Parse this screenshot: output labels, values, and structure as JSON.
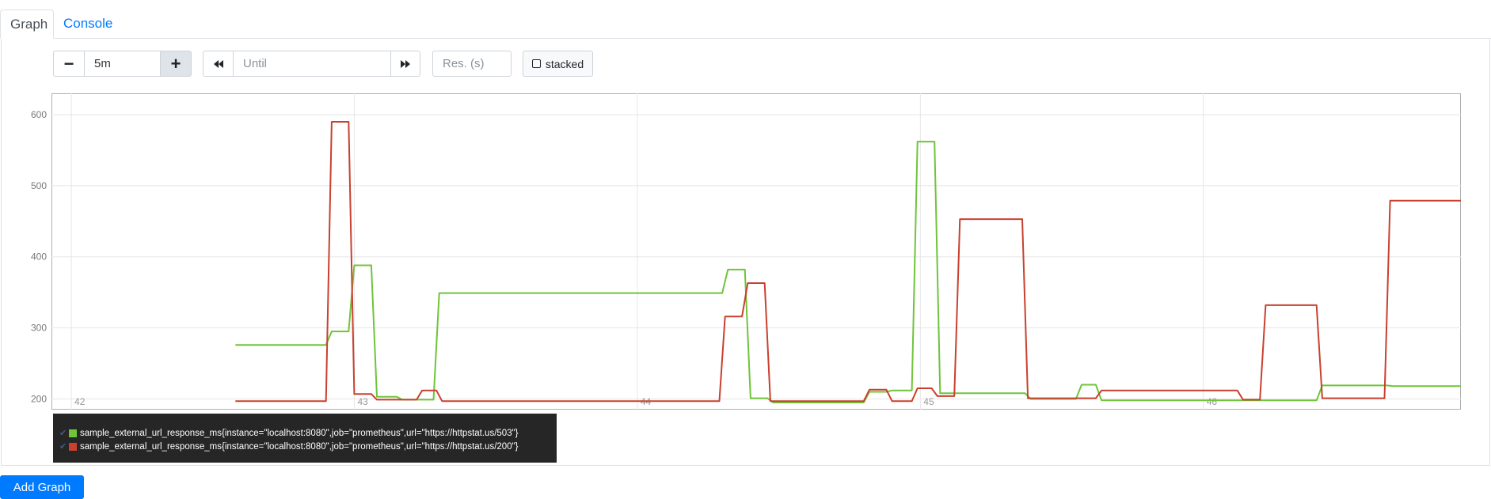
{
  "tabs": {
    "graph": "Graph",
    "console": "Console"
  },
  "controls": {
    "range_minus": "−",
    "range_value": "5m",
    "range_plus": "+",
    "until_placeholder": "Until",
    "resolution_placeholder": "Res. (s)",
    "stacked_label": "stacked",
    "back_icon": "rewind-icon",
    "forward_icon": "fast-forward-icon"
  },
  "add_graph_label": "Add Graph",
  "colors": {
    "series_503": "#6fc43a",
    "series_200": "#c9402e"
  },
  "chart_data": {
    "type": "line",
    "title": "",
    "xlabel": "",
    "ylabel": "",
    "x_ticks": [
      "42",
      "43",
      "44",
      "45",
      "46"
    ],
    "y_ticks": [
      "200",
      "300",
      "400",
      "500",
      "600"
    ],
    "xlim": [
      41.93,
      46.91
    ],
    "ylim": [
      185,
      630
    ],
    "grid": true,
    "series": [
      {
        "name": "sample_external_url_response_ms{instance=\"localhost:8080\",job=\"prometheus\",url=\"https://httpstat.us/503\"}",
        "color": "#6fc43a",
        "points": [
          [
            42.58,
            276
          ],
          [
            42.9,
            276
          ],
          [
            42.92,
            295
          ],
          [
            42.98,
            295
          ],
          [
            43.0,
            388
          ],
          [
            43.06,
            388
          ],
          [
            43.08,
            203
          ],
          [
            43.15,
            203
          ],
          [
            43.17,
            199
          ],
          [
            43.28,
            199
          ],
          [
            43.3,
            349
          ],
          [
            44.3,
            349
          ],
          [
            44.32,
            382
          ],
          [
            44.38,
            382
          ],
          [
            44.4,
            201
          ],
          [
            44.46,
            201
          ],
          [
            44.48,
            195
          ],
          [
            44.8,
            195
          ],
          [
            44.82,
            210
          ],
          [
            44.88,
            210
          ],
          [
            44.9,
            212
          ],
          [
            44.97,
            212
          ],
          [
            44.99,
            562
          ],
          [
            45.05,
            562
          ],
          [
            45.07,
            208
          ],
          [
            45.37,
            208
          ],
          [
            45.39,
            200
          ],
          [
            45.55,
            200
          ],
          [
            45.57,
            220
          ],
          [
            45.62,
            220
          ],
          [
            45.64,
            198
          ],
          [
            46.4,
            198
          ],
          [
            46.42,
            219
          ],
          [
            46.65,
            219
          ],
          [
            46.67,
            218
          ],
          [
            46.91,
            218
          ]
        ]
      },
      {
        "name": "sample_external_url_response_ms{instance=\"localhost:8080\",job=\"prometheus\",url=\"https://httpstat.us/200\"}",
        "color": "#c9402e",
        "points": [
          [
            42.58,
            197
          ],
          [
            42.9,
            197
          ],
          [
            42.92,
            590
          ],
          [
            42.98,
            590
          ],
          [
            43.0,
            207
          ],
          [
            43.06,
            207
          ],
          [
            43.08,
            199
          ],
          [
            43.22,
            199
          ],
          [
            43.24,
            212
          ],
          [
            43.29,
            212
          ],
          [
            43.31,
            197
          ],
          [
            44.29,
            197
          ],
          [
            44.31,
            316
          ],
          [
            44.37,
            316
          ],
          [
            44.39,
            363
          ],
          [
            44.45,
            363
          ],
          [
            44.47,
            197
          ],
          [
            44.8,
            197
          ],
          [
            44.82,
            213
          ],
          [
            44.88,
            213
          ],
          [
            44.9,
            197
          ],
          [
            44.97,
            197
          ],
          [
            44.99,
            215
          ],
          [
            45.04,
            215
          ],
          [
            45.06,
            204
          ],
          [
            45.12,
            204
          ],
          [
            45.14,
            453
          ],
          [
            45.36,
            453
          ],
          [
            45.38,
            201
          ],
          [
            45.62,
            201
          ],
          [
            45.64,
            212
          ],
          [
            46.12,
            212
          ],
          [
            46.14,
            199
          ],
          [
            46.2,
            199
          ],
          [
            46.22,
            332
          ],
          [
            46.4,
            332
          ],
          [
            46.42,
            201
          ],
          [
            46.64,
            201
          ],
          [
            46.66,
            479
          ],
          [
            46.91,
            479
          ]
        ]
      }
    ]
  }
}
